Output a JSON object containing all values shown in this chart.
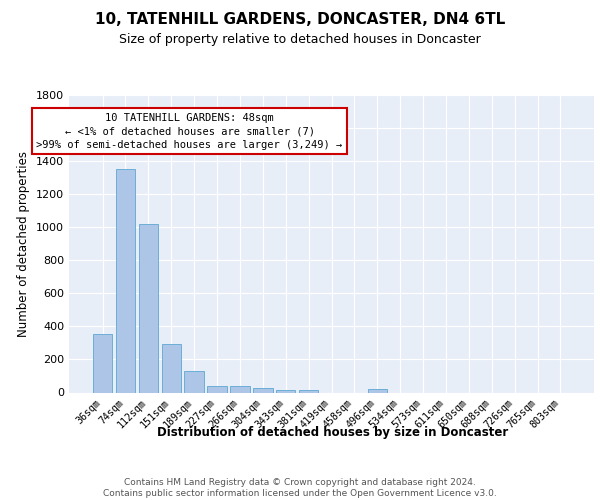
{
  "title": "10, TATENHILL GARDENS, DONCASTER, DN4 6TL",
  "subtitle": "Size of property relative to detached houses in Doncaster",
  "xlabel": "Distribution of detached houses by size in Doncaster",
  "ylabel": "Number of detached properties",
  "categories": [
    "36sqm",
    "74sqm",
    "112sqm",
    "151sqm",
    "189sqm",
    "227sqm",
    "266sqm",
    "304sqm",
    "343sqm",
    "381sqm",
    "419sqm",
    "458sqm",
    "496sqm",
    "534sqm",
    "573sqm",
    "611sqm",
    "650sqm",
    "688sqm",
    "726sqm",
    "765sqm",
    "803sqm"
  ],
  "values": [
    355,
    1355,
    1020,
    295,
    130,
    40,
    38,
    30,
    18,
    15,
    0,
    0,
    20,
    0,
    0,
    0,
    0,
    0,
    0,
    0,
    0
  ],
  "bar_color": "#adc6e8",
  "bar_edge_color": "#6baed6",
  "annotation_text": "10 TATENHILL GARDENS: 48sqm\n← <1% of detached houses are smaller (7)\n>99% of semi-detached houses are larger (3,249) →",
  "annotation_box_color": "#ffffff",
  "annotation_box_edge_color": "#cc0000",
  "ylim": [
    0,
    1800
  ],
  "yticks": [
    0,
    200,
    400,
    600,
    800,
    1000,
    1200,
    1400,
    1600,
    1800
  ],
  "bg_color": "#e8eef8",
  "grid_color": "#ffffff",
  "footer": "Contains HM Land Registry data © Crown copyright and database right 2024.\nContains public sector information licensed under the Open Government Licence v3.0."
}
